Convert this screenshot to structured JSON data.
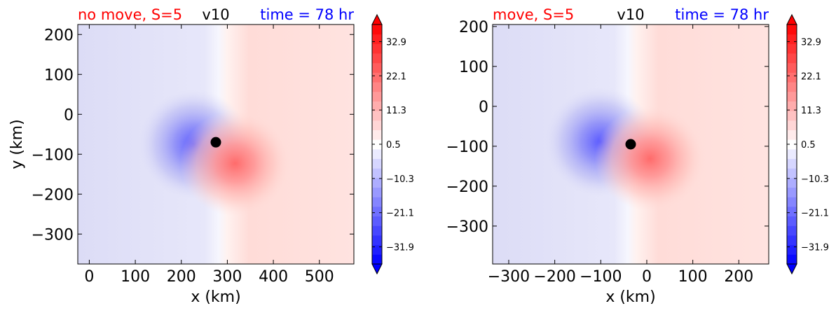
{
  "figure": {
    "panels": [
      {
        "title_left": "no move, S=5",
        "title_center": "v10",
        "title_right": "time = 78 hr",
        "xlabel": "x (km)",
        "ylabel": "y (km)"
      },
      {
        "title_left": "move, S=5",
        "title_center": "v10",
        "title_right": "time = 78 hr",
        "xlabel": "x (km)",
        "ylabel": ""
      }
    ]
  },
  "colors": {
    "title_left": "#ff0000",
    "title_center": "#000000",
    "title_right": "#0000ff",
    "colormap": "bwr",
    "center_marker": "#000000"
  },
  "chart_data": [
    {
      "type": "heatmap",
      "variable": "v10",
      "xlabel": "x (km)",
      "ylabel": "y (km)",
      "xlim": [
        -25,
        575
      ],
      "ylim": [
        -375,
        225
      ],
      "xticks": [
        0,
        100,
        200,
        300,
        400,
        500
      ],
      "yticks": [
        200,
        100,
        0,
        -100,
        -200,
        -300
      ],
      "xtick_labels": [
        "0",
        "100",
        "200",
        "300",
        "400",
        "500"
      ],
      "ytick_labels": [
        "200",
        "100",
        "0",
        "−100",
        "−200",
        "−300"
      ],
      "center_marker": {
        "x": 275,
        "y": -70
      },
      "colorbar": {
        "min": -37.3,
        "max": 38.3,
        "levels": 25,
        "extend": "both",
        "tick_values": [
          32.9,
          22.1,
          11.3,
          0.5,
          -10.3,
          -21.1,
          -31.9
        ],
        "tick_labels": [
          "32.9",
          "22.1",
          "11.3",
          "0.5",
          "−10.3",
          "−21.1",
          "−31.9"
        ]
      }
    },
    {
      "type": "heatmap",
      "variable": "v10",
      "xlabel": "x (km)",
      "ylabel": "",
      "xlim": [
        -335,
        265
      ],
      "ylim": [
        -395,
        205
      ],
      "xticks": [
        -300,
        -200,
        -100,
        0,
        100,
        200
      ],
      "yticks": [
        200,
        100,
        0,
        -100,
        -200,
        -300
      ],
      "xtick_labels": [
        "−300",
        "−200",
        "−100",
        "0",
        "100",
        "200"
      ],
      "ytick_labels": [
        "200",
        "100",
        "0",
        "−100",
        "−200",
        "−300"
      ],
      "center_marker": {
        "x": -35,
        "y": -95
      },
      "colorbar": {
        "min": -37.3,
        "max": 38.3,
        "levels": 25,
        "extend": "both",
        "tick_values": [
          32.9,
          22.1,
          11.3,
          0.5,
          -10.3,
          -21.1,
          -31.9
        ],
        "tick_labels": [
          "32.9",
          "22.1",
          "11.3",
          "0.5",
          "−10.3",
          "−21.1",
          "−31.9"
        ]
      }
    }
  ]
}
